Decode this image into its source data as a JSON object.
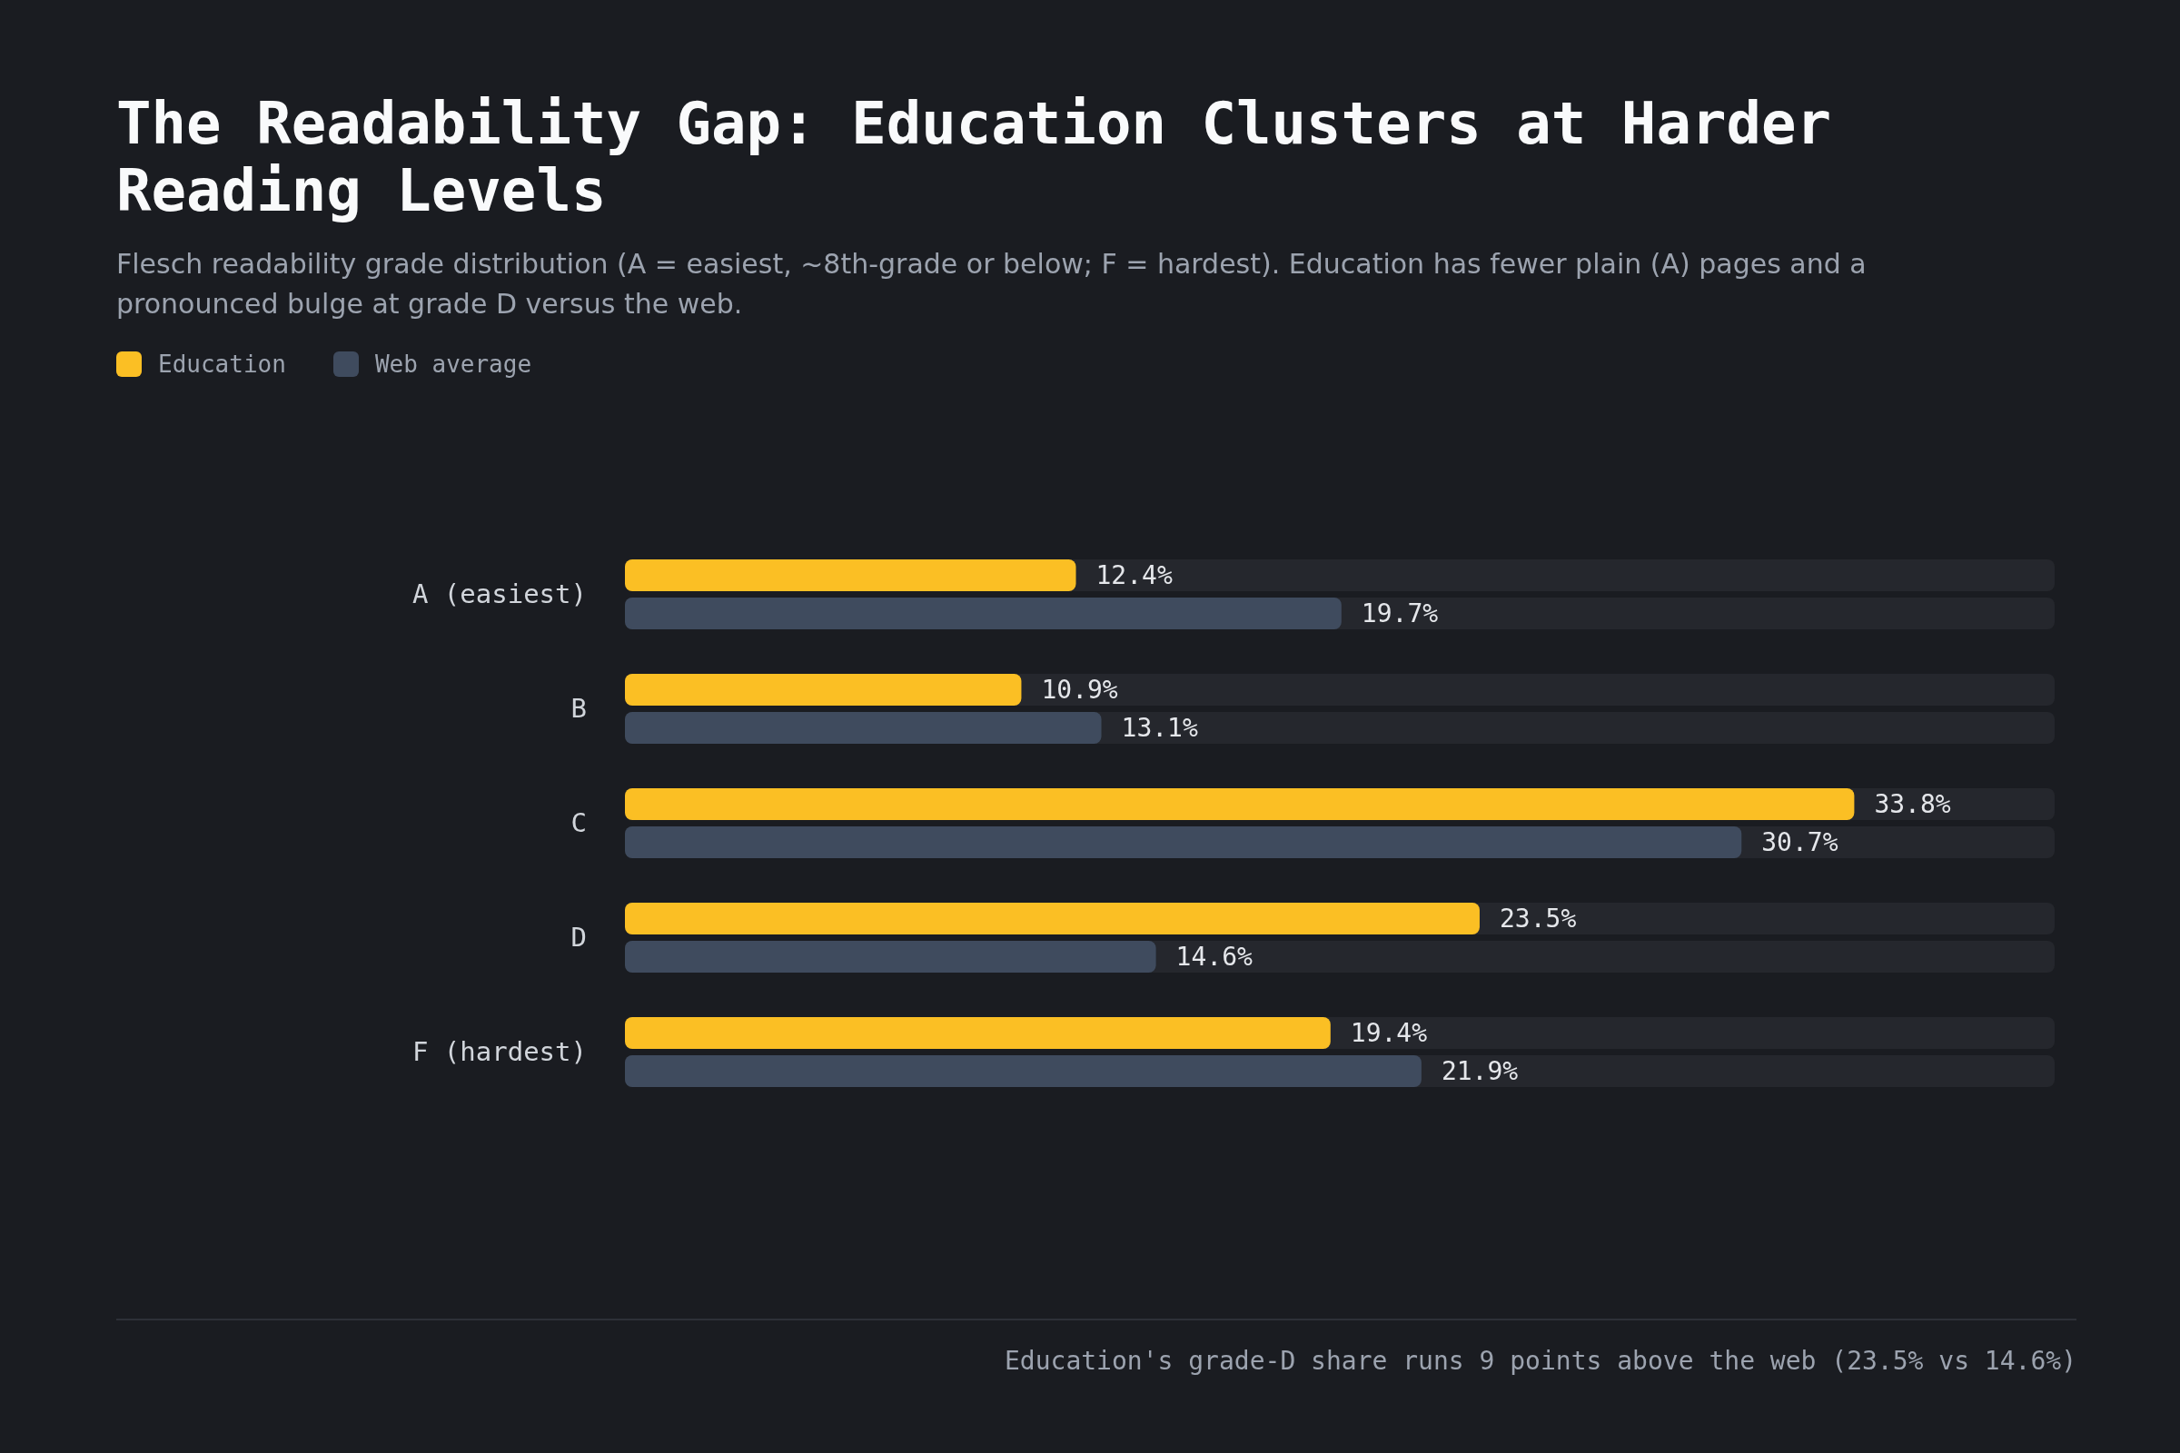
{
  "chart_data": {
    "type": "bar",
    "orientation": "horizontal",
    "title": "The Readability Gap: Education Clusters at Harder Reading Levels",
    "subtitle": "Flesch readability grade distribution (A = easiest, ~8th-grade or below; F = hardest). Education has fewer plain (A) pages and a pronounced bulge at grade D versus the web.",
    "categories": [
      "A (easiest)",
      "B",
      "C",
      "D",
      "F (hardest)"
    ],
    "series": [
      {
        "name": "Education",
        "color": "#fbbf24",
        "values": [
          12.4,
          10.9,
          33.8,
          23.5,
          19.4
        ],
        "value_labels": [
          "12.4%",
          "10.9%",
          "33.8%",
          "23.5%",
          "19.4%"
        ]
      },
      {
        "name": "Web average",
        "color": "#3f4b5e",
        "values": [
          19.7,
          13.1,
          30.7,
          14.6,
          21.9
        ],
        "value_labels": [
          "19.7%",
          "13.1%",
          "30.7%",
          "14.6%",
          "21.9%"
        ]
      }
    ],
    "legend": "top left",
    "annotations": [
      "Education's grade-D share runs 9 points above the web (23.5% vs 14.6%)"
    ]
  }
}
